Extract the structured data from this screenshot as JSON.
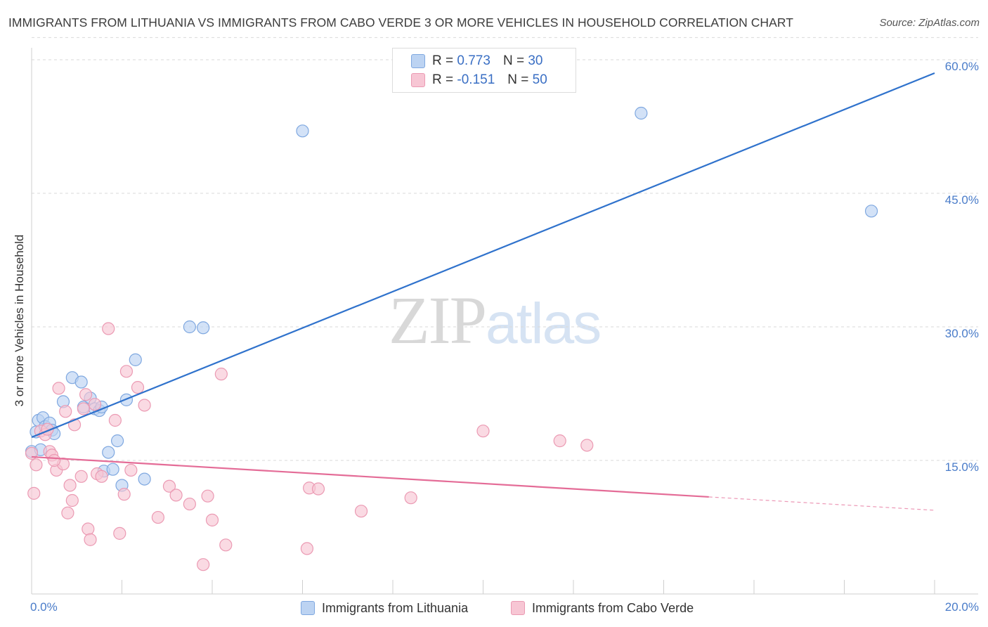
{
  "title": "IMMIGRANTS FROM LITHUANIA VS IMMIGRANTS FROM CABO VERDE 3 OR MORE VEHICLES IN HOUSEHOLD CORRELATION CHART",
  "source": "Source: ZipAtlas.com",
  "watermark": {
    "part1": "ZIP",
    "part2": "atlas"
  },
  "legend": {
    "rows": [
      {
        "r_label": "R =",
        "r_value": "0.773",
        "n_label": "N =",
        "n_value": "30"
      },
      {
        "r_label": "R =",
        "r_value": "-0.151",
        "n_label": "N =",
        "n_value": "50"
      }
    ]
  },
  "colors": {
    "lithuania_fill": "#bcd3f2",
    "lithuania_stroke": "#7fa8e0",
    "lithuania_line": "#2f72cc",
    "caboverde_fill": "#f7c6d4",
    "caboverde_stroke": "#eb9ab3",
    "caboverde_line": "#e46c97",
    "grid": "#d9d9d9",
    "tick_text": "#4a7cc9"
  },
  "chart_data": {
    "type": "scatter",
    "title": "IMMIGRANTS FROM LITHUANIA VS IMMIGRANTS FROM CABO VERDE 3 OR MORE VEHICLES IN HOUSEHOLD CORRELATION CHART",
    "xlabel": "",
    "ylabel": "3 or more Vehicles in Household",
    "x_unit": "%",
    "xlim": [
      0,
      20
    ],
    "ylim": [
      0,
      62.5
    ],
    "x_tick_labels": [
      "0.0%",
      "20.0%"
    ],
    "y_ticks": [
      15,
      30,
      45,
      60
    ],
    "y_tick_labels": [
      "15.0%",
      "30.0%",
      "45.0%",
      "60.0%"
    ],
    "grid": true,
    "legend_position": "top-center",
    "series": [
      {
        "name": "Immigrants from Lithuania",
        "r": 0.773,
        "n": 30,
        "trend": {
          "x0": 0,
          "y0": 17.6,
          "x1": 20,
          "y1": 58.5,
          "solid_until_x": 20
        },
        "points": [
          [
            0.0,
            16.0
          ],
          [
            0.1,
            18.2
          ],
          [
            0.15,
            19.5
          ],
          [
            0.25,
            19.8
          ],
          [
            0.3,
            18.8
          ],
          [
            0.4,
            19.2
          ],
          [
            0.45,
            18.4
          ],
          [
            0.5,
            18.0
          ],
          [
            0.7,
            21.6
          ],
          [
            0.9,
            24.3
          ],
          [
            1.1,
            23.8
          ],
          [
            1.15,
            21.0
          ],
          [
            1.3,
            22.0
          ],
          [
            1.4,
            20.8
          ],
          [
            1.5,
            20.6
          ],
          [
            1.55,
            21.0
          ],
          [
            1.6,
            13.8
          ],
          [
            1.7,
            15.9
          ],
          [
            1.8,
            14.0
          ],
          [
            1.9,
            17.2
          ],
          [
            2.0,
            12.2
          ],
          [
            2.1,
            21.8
          ],
          [
            2.3,
            26.3
          ],
          [
            2.5,
            12.9
          ],
          [
            3.5,
            30.0
          ],
          [
            3.8,
            29.9
          ],
          [
            6.0,
            52.0
          ],
          [
            13.5,
            54.0
          ],
          [
            18.6,
            43.0
          ],
          [
            0.2,
            16.2
          ]
        ]
      },
      {
        "name": "Immigrants from Cabo Verde",
        "r": -0.151,
        "n": 50,
        "trend": {
          "x0": 0,
          "y0": 15.4,
          "x1": 20,
          "y1": 9.4,
          "solid_until_x": 15
        },
        "points": [
          [
            0.0,
            15.8
          ],
          [
            0.05,
            11.3
          ],
          [
            0.1,
            14.5
          ],
          [
            0.2,
            18.3
          ],
          [
            0.3,
            17.9
          ],
          [
            0.4,
            16.0
          ],
          [
            0.45,
            15.6
          ],
          [
            0.55,
            13.9
          ],
          [
            0.6,
            23.1
          ],
          [
            0.7,
            14.6
          ],
          [
            0.75,
            20.5
          ],
          [
            0.8,
            9.1
          ],
          [
            0.85,
            12.2
          ],
          [
            0.9,
            10.5
          ],
          [
            0.95,
            19.0
          ],
          [
            1.1,
            13.2
          ],
          [
            1.15,
            20.8
          ],
          [
            1.2,
            22.4
          ],
          [
            1.25,
            7.3
          ],
          [
            1.3,
            6.1
          ],
          [
            1.4,
            21.3
          ],
          [
            1.45,
            13.5
          ],
          [
            1.55,
            13.2
          ],
          [
            1.7,
            29.8
          ],
          [
            1.85,
            19.5
          ],
          [
            1.95,
            6.8
          ],
          [
            2.05,
            11.2
          ],
          [
            2.1,
            25.0
          ],
          [
            2.2,
            13.9
          ],
          [
            2.35,
            23.2
          ],
          [
            2.5,
            21.2
          ],
          [
            2.8,
            8.6
          ],
          [
            3.05,
            12.1
          ],
          [
            3.2,
            11.1
          ],
          [
            3.5,
            10.1
          ],
          [
            3.8,
            3.3
          ],
          [
            3.9,
            11.0
          ],
          [
            4.0,
            8.3
          ],
          [
            4.2,
            24.7
          ],
          [
            4.3,
            5.5
          ],
          [
            6.1,
            5.1
          ],
          [
            6.15,
            11.9
          ],
          [
            6.35,
            11.8
          ],
          [
            7.3,
            9.3
          ],
          [
            8.4,
            10.8
          ],
          [
            10.0,
            18.3
          ],
          [
            11.7,
            17.2
          ],
          [
            12.3,
            16.7
          ],
          [
            0.35,
            18.5
          ],
          [
            0.5,
            15.0
          ]
        ]
      }
    ]
  }
}
